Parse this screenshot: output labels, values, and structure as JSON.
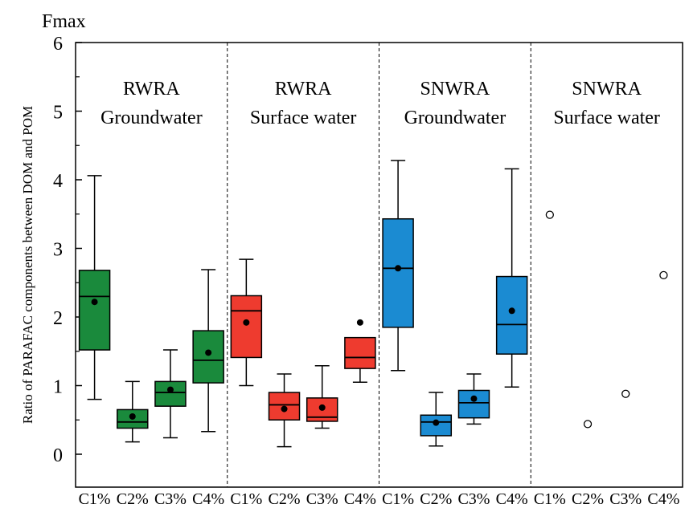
{
  "chart_data": {
    "type": "box",
    "unit_label": "Fmax",
    "ylabel": "Ratio of PARAFAC components between DOM and POM",
    "ylim": [
      -0.5,
      6
    ],
    "yticks": [
      0,
      1,
      2,
      3,
      4,
      5,
      6
    ],
    "categories": [
      "C1%",
      "C2%",
      "C3%",
      "C4%"
    ],
    "grid": false,
    "panels": [
      {
        "name_line1": "RWRA",
        "name_line2": "Groundwater",
        "color": "#1a8a3c",
        "boxes": [
          {
            "category": "C1%",
            "min": 0.8,
            "q1": 1.52,
            "median": 2.3,
            "q3": 2.68,
            "max": 4.06,
            "mean": 2.22
          },
          {
            "category": "C2%",
            "min": 0.18,
            "q1": 0.38,
            "median": 0.47,
            "q3": 0.65,
            "max": 1.06,
            "mean": 0.55
          },
          {
            "category": "C3%",
            "min": 0.24,
            "q1": 0.7,
            "median": 0.9,
            "q3": 1.06,
            "max": 1.52,
            "mean": 0.94
          },
          {
            "category": "C4%",
            "min": 0.33,
            "q1": 1.04,
            "median": 1.37,
            "q3": 1.8,
            "max": 2.69,
            "mean": 1.48
          }
        ]
      },
      {
        "name_line1": "RWRA",
        "name_line2": "Surface water",
        "color": "#ee3b2f",
        "boxes": [
          {
            "category": "C1%",
            "min": 1.0,
            "q1": 1.41,
            "median": 2.09,
            "q3": 2.31,
            "max": 2.84,
            "mean": 1.92
          },
          {
            "category": "C2%",
            "min": 0.11,
            "q1": 0.5,
            "median": 0.72,
            "q3": 0.9,
            "max": 1.17,
            "mean": 0.66
          },
          {
            "category": "C3%",
            "min": 0.38,
            "q1": 0.48,
            "median": 0.54,
            "q3": 0.82,
            "max": 1.29,
            "mean": 0.68
          },
          {
            "category": "C4%",
            "min": 1.05,
            "q1": 1.25,
            "median": 1.41,
            "q3": 1.7,
            "max": null,
            "mean": 1.92
          }
        ]
      },
      {
        "name_line1": "SNWRA",
        "name_line2": "Groundwater",
        "color": "#1b8bd2",
        "boxes": [
          {
            "category": "C1%",
            "min": 1.22,
            "q1": 1.85,
            "median": 2.71,
            "q3": 3.43,
            "max": 4.28,
            "mean": 2.71
          },
          {
            "category": "C2%",
            "min": 0.12,
            "q1": 0.27,
            "median": 0.47,
            "q3": 0.57,
            "max": 0.9,
            "mean": 0.46
          },
          {
            "category": "C3%",
            "min": 0.44,
            "q1": 0.53,
            "median": 0.75,
            "q3": 0.93,
            "max": 1.17,
            "mean": 0.81
          },
          {
            "category": "C4%",
            "min": 0.98,
            "q1": 1.46,
            "median": 1.89,
            "q3": 2.59,
            "max": 4.16,
            "mean": 2.09
          }
        ]
      },
      {
        "name_line1": "SNWRA",
        "name_line2": "Surface water",
        "color": null,
        "points": [
          {
            "category": "C1%",
            "value": 3.49
          },
          {
            "category": "C2%",
            "value": 0.44
          },
          {
            "category": "C3%",
            "value": 0.88
          },
          {
            "category": "C4%",
            "value": 2.61
          }
        ]
      }
    ]
  }
}
